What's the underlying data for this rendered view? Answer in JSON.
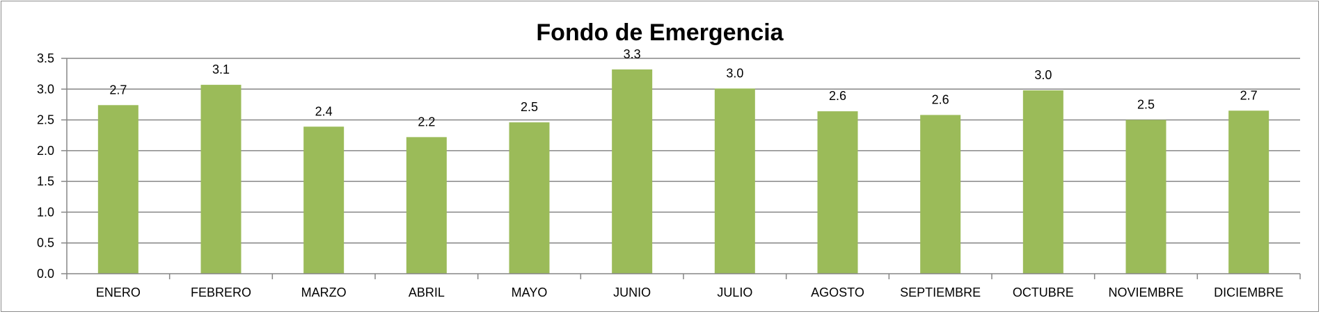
{
  "chart_data": {
    "type": "bar",
    "title": "Fondo de Emergencia",
    "xlabel": "",
    "ylabel": "",
    "categories": [
      "ENERO",
      "FEBRERO",
      "MARZO",
      "ABRIL",
      "MAYO",
      "JUNIO",
      "JULIO",
      "AGOSTO",
      "SEPTIEMBRE",
      "OCTUBRE",
      "NOVIEMBRE",
      "DICIEMBRE"
    ],
    "values": [
      2.74,
      3.07,
      2.39,
      2.22,
      2.46,
      3.32,
      3.01,
      2.64,
      2.58,
      2.98,
      2.5,
      2.65
    ],
    "data_labels": [
      "2.7",
      "3.1",
      "2.4",
      "2.2",
      "2.5",
      "3.3",
      "3.0",
      "2.6",
      "2.6",
      "3.0",
      "2.5",
      "2.7"
    ],
    "ylim": [
      0,
      3.5
    ],
    "yticks": [
      "0.0",
      "0.5",
      "1.0",
      "1.5",
      "2.0",
      "2.5",
      "3.0",
      "3.5"
    ],
    "grid": true,
    "legend": "none",
    "bar_color": "#9BBB59"
  }
}
